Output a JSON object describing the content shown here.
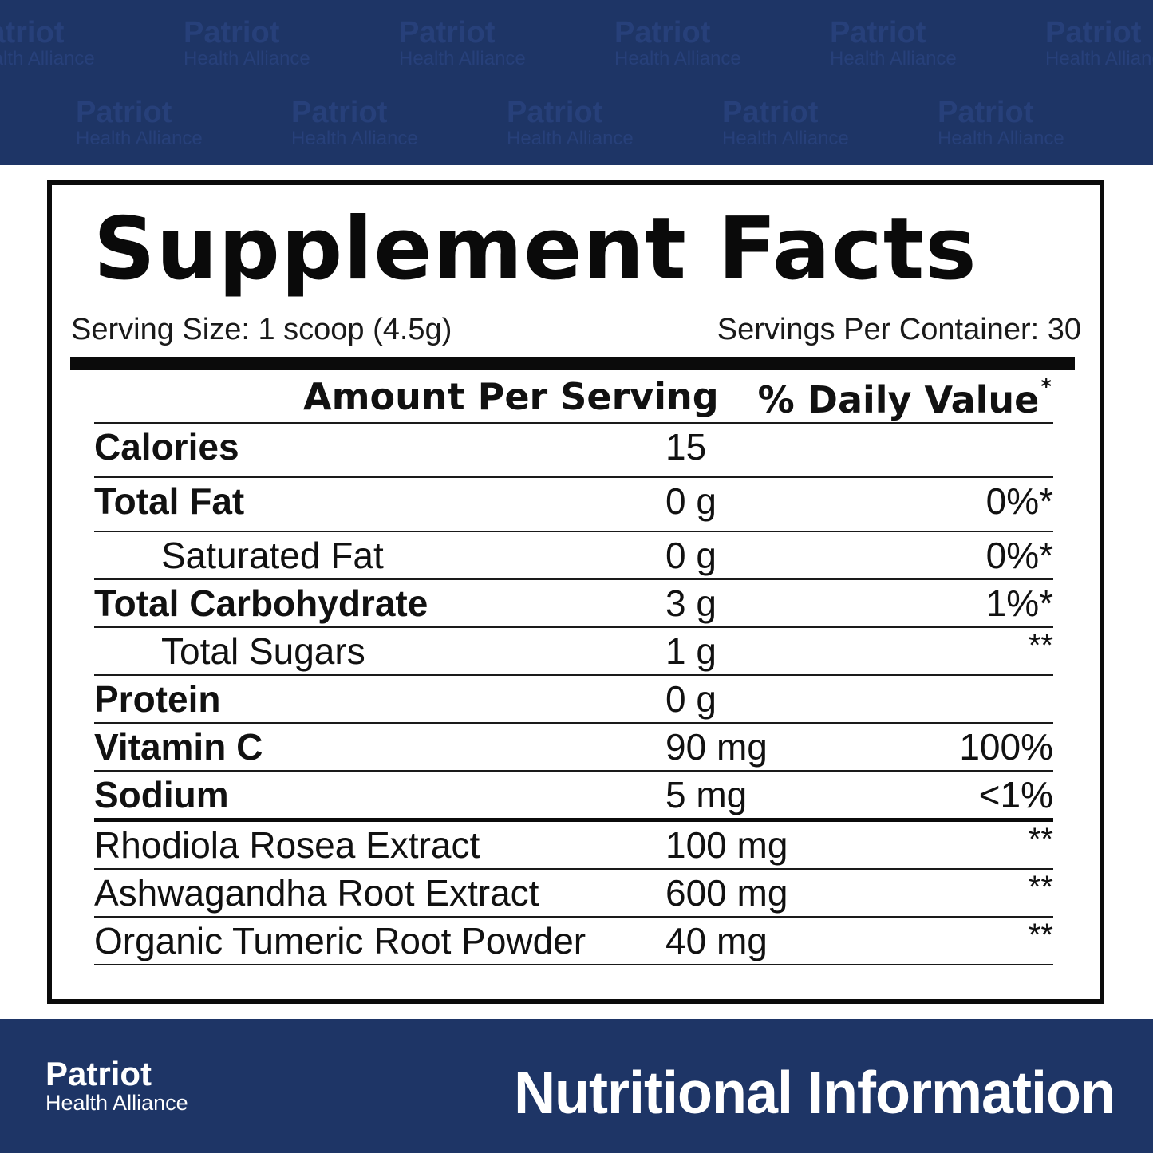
{
  "colors": {
    "banner": "#1e3566",
    "watermark": "#27407a",
    "panel_border": "#0b0b0b",
    "text": "#111111",
    "footer_text": "#ffffff"
  },
  "watermark": {
    "brand": "Patriot",
    "tagline": "Health Alliance"
  },
  "facts": {
    "title": "Supplement Facts",
    "serving_size": "Serving Size: 1 scoop (4.5g)",
    "servings_per_container": "Servings Per Container: 30",
    "header_amount": "Amount Per Serving",
    "header_daily_value": "% Daily Value",
    "header_daily_value_mark": "*",
    "rows": [
      {
        "name": "Calories",
        "amount": "15",
        "dv": ""
      },
      {
        "name": "Total Fat",
        "amount": "0 g",
        "dv": "0%*"
      },
      {
        "name": "Saturated Fat",
        "amount": "0 g",
        "dv": "0%*"
      },
      {
        "name": "Total Carbohydrate",
        "amount": "3 g",
        "dv": "1%*"
      },
      {
        "name": "Total Sugars",
        "amount": "1 g",
        "dv": "**"
      },
      {
        "name": "Protein",
        "amount": "0 g",
        "dv": ""
      },
      {
        "name": "Vitamin C",
        "amount": "90 mg",
        "dv": "100%"
      },
      {
        "name": "Sodium",
        "amount": "5 mg",
        "dv": "<1%"
      },
      {
        "name": "Rhodiola Rosea Extract",
        "amount": "100 mg",
        "dv": "**"
      },
      {
        "name": "Ashwagandha Root Extract",
        "amount": "600 mg",
        "dv": "**"
      },
      {
        "name": "Organic Tumeric Root Powder",
        "amount": "40 mg",
        "dv": "**"
      }
    ]
  },
  "footer": {
    "logo_brand": "Patriot",
    "logo_tagline": "Health Alliance",
    "title": "Nutritional Information"
  }
}
